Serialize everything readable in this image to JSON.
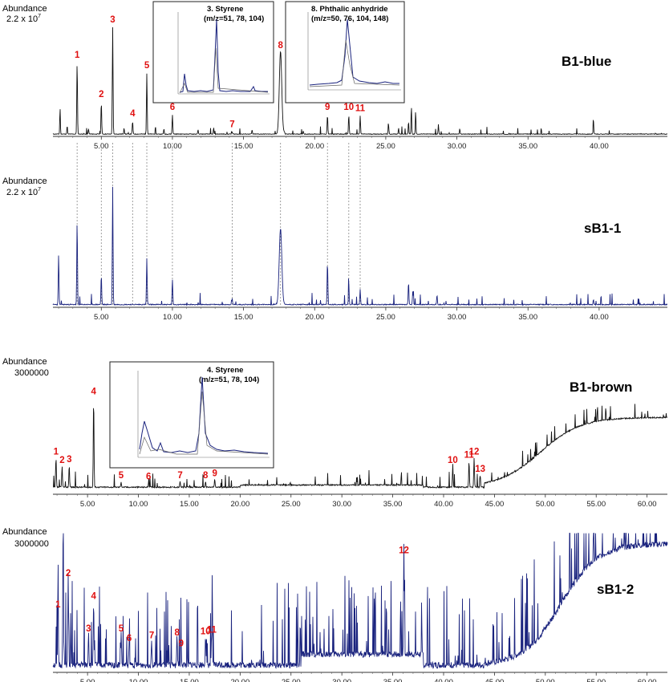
{
  "chart_data": [
    {
      "type": "line",
      "panel_label": "B1-blue",
      "ylabel": "Abundance",
      "ymax_label": "2.2 x 10",
      "ymax_exp": "7",
      "line_color": "#111111",
      "xlim": [
        1.6,
        44.8
      ],
      "xticks": [
        "5.00",
        "10.00",
        "15.00",
        "20.00",
        "25.00",
        "30.00",
        "35.00",
        "40.00"
      ],
      "peaks": [
        {
          "label": "1",
          "x": 3.3,
          "y": 0.67
        },
        {
          "label": "2",
          "x": 5.0,
          "y": 0.3
        },
        {
          "label": "3",
          "x": 5.8,
          "y": 1.0
        },
        {
          "label": "4",
          "x": 7.2,
          "y": 0.12
        },
        {
          "label": "5",
          "x": 8.2,
          "y": 0.57
        },
        {
          "label": "6",
          "x": 10.0,
          "y": 0.18
        },
        {
          "label": "7",
          "x": 14.2,
          "y": 0.02
        },
        {
          "label": "8",
          "x": 17.6,
          "y": 0.76
        },
        {
          "label": "9",
          "x": 20.9,
          "y": 0.18
        },
        {
          "label": "10",
          "x": 22.4,
          "y": 0.18
        },
        {
          "label": "11",
          "x": 23.2,
          "y": 0.17
        }
      ],
      "minor_peaks": [
        {
          "x": 2.1,
          "y": 0.25
        },
        {
          "x": 2.6,
          "y": 0.08
        },
        {
          "x": 4.1,
          "y": 0.05
        },
        {
          "x": 6.6,
          "y": 0.06
        },
        {
          "x": 9.4,
          "y": 0.05
        },
        {
          "x": 11.8,
          "y": 0.04
        },
        {
          "x": 12.9,
          "y": 0.06
        },
        {
          "x": 15.6,
          "y": 0.04
        },
        {
          "x": 19.2,
          "y": 0.03
        },
        {
          "x": 25.2,
          "y": 0.08
        },
        {
          "x": 25.9,
          "y": 0.06
        },
        {
          "x": 26.6,
          "y": 0.12
        },
        {
          "x": 26.8,
          "y": 0.27
        },
        {
          "x": 27.1,
          "y": 0.22
        },
        {
          "x": 28.7,
          "y": 0.09
        },
        {
          "x": 30.2,
          "y": 0.05
        },
        {
          "x": 39.6,
          "y": 0.13
        }
      ],
      "insets": [
        {
          "title_line1": "3. Styrene",
          "title_line2": "(m/z=51, 78, 104)"
        },
        {
          "title_line1": "8. Phthalic anhydride",
          "title_line2": "(m/z=50, 76, 104, 148)"
        }
      ]
    },
    {
      "type": "line",
      "panel_label": "sB1-1",
      "ylabel": "Abundance",
      "ymax_label": "2.2 x 10",
      "ymax_exp": "7",
      "line_color": "#1a237e",
      "xlim": [
        1.6,
        44.8
      ],
      "xticks": [
        "5.00",
        "10.00",
        "15.00",
        "20.00",
        "25.00",
        "30.00",
        "35.00",
        "40.00"
      ],
      "peaks": [
        {
          "x": 2.0,
          "y": 0.42
        },
        {
          "x": 3.3,
          "y": 0.7
        },
        {
          "x": 5.0,
          "y": 0.25
        },
        {
          "x": 5.8,
          "y": 0.99
        },
        {
          "x": 8.2,
          "y": 0.39
        },
        {
          "x": 10.0,
          "y": 0.21
        },
        {
          "x": 14.2,
          "y": 0.05
        },
        {
          "x": 17.6,
          "y": 0.64
        },
        {
          "x": 20.9,
          "y": 0.36
        },
        {
          "x": 22.4,
          "y": 0.17
        },
        {
          "x": 23.2,
          "y": 0.13
        },
        {
          "x": 26.6,
          "y": 0.19
        },
        {
          "x": 26.9,
          "y": 0.11
        },
        {
          "x": 28.6,
          "y": 0.08
        },
        {
          "x": 39.6,
          "y": 0.04
        }
      ]
    },
    {
      "type": "line",
      "panel_label": "B1-brown",
      "ylabel": "Abundance",
      "ymax_label": "3000000",
      "line_color": "#111111",
      "xlim": [
        1.6,
        62.0
      ],
      "xticks": [
        "5.00",
        "10.00",
        "15.00",
        "20.00",
        "25.00",
        "30.00",
        "35.00",
        "40.00",
        "45.00",
        "50.00",
        "55.00",
        "60.00"
      ],
      "peaks": [
        {
          "label": "1",
          "x": 1.9,
          "y": 0.27
        },
        {
          "label": "2",
          "x": 2.5,
          "y": 0.19
        },
        {
          "label": "3",
          "x": 3.2,
          "y": 0.2
        },
        {
          "label": "4",
          "x": 5.6,
          "y": 0.82
        },
        {
          "label": "5",
          "x": 8.3,
          "y": 0.05
        },
        {
          "label": "6",
          "x": 11.0,
          "y": 0.04
        },
        {
          "label": "7",
          "x": 14.1,
          "y": 0.05
        },
        {
          "label": "8",
          "x": 16.6,
          "y": 0.05
        },
        {
          "label": "9",
          "x": 17.5,
          "y": 0.07
        },
        {
          "label": "10",
          "x": 40.9,
          "y": 0.19
        },
        {
          "label": "11",
          "x": 42.5,
          "y": 0.24
        },
        {
          "label": "12",
          "x": 43.0,
          "y": 0.27
        },
        {
          "label": "13",
          "x": 43.6,
          "y": 0.11
        }
      ],
      "insets": [
        {
          "title_line1": "4. Styrene",
          "title_line2": "(m/z=51, 78, 104)"
        }
      ]
    },
    {
      "type": "line",
      "panel_label": "sB1-2",
      "ylabel": "Abundance",
      "ymax_label": "3000000",
      "line_color": "#1a237e",
      "xlim": [
        1.6,
        62.0
      ],
      "xticks": [
        "5.00",
        "10.00",
        "15.00",
        "20.00",
        "25.00",
        "30.00",
        "35.00",
        "40.00",
        "45.00",
        "50.00",
        "55.00",
        "60.00"
      ],
      "peaks": [
        {
          "label": "1",
          "x": 2.1,
          "y": 0.43
        },
        {
          "label": "2",
          "x": 3.1,
          "y": 0.66
        },
        {
          "label": "3",
          "x": 5.1,
          "y": 0.25
        },
        {
          "label": "4",
          "x": 5.6,
          "y": 0.49
        },
        {
          "label": "5",
          "x": 8.3,
          "y": 0.25
        },
        {
          "label": "6",
          "x": 9.1,
          "y": 0.18
        },
        {
          "label": "7",
          "x": 11.3,
          "y": 0.2
        },
        {
          "label": "8",
          "x": 13.8,
          "y": 0.22
        },
        {
          "label": "9",
          "x": 14.2,
          "y": 0.14
        },
        {
          "label": "10",
          "x": 16.6,
          "y": 0.23
        },
        {
          "label": "11",
          "x": 17.2,
          "y": 0.24
        },
        {
          "label": "12",
          "x": 36.1,
          "y": 0.83
        }
      ],
      "extra_peaks": [
        {
          "x": 2.6,
          "y": 0.97
        }
      ]
    }
  ]
}
